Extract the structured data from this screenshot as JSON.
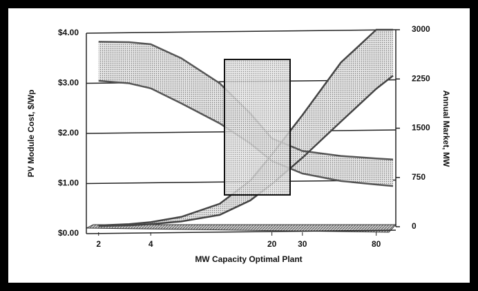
{
  "chart_data": {
    "type": "band",
    "xlabel": "MW Capacity Optimal Plant",
    "ylabel": "PV Module Cost, $/Wp",
    "y2label": "Annual Market, MW",
    "xscale": "log",
    "x": [
      2,
      3,
      4,
      6,
      10,
      15,
      20,
      30,
      50,
      80,
      100
    ],
    "xlim": [
      1.7,
      100
    ],
    "xticks": [
      2,
      4,
      20,
      30,
      80
    ],
    "ylim": [
      0,
      4
    ],
    "yticks": [
      {
        "value": 0,
        "label": "$0.00"
      },
      {
        "value": 1,
        "label": "$1.00"
      },
      {
        "value": 2,
        "label": "$2.00"
      },
      {
        "value": 3,
        "label": "$3.00"
      },
      {
        "value": 4,
        "label": "$4.00"
      }
    ],
    "y2lim": [
      0,
      3000
    ],
    "y2ticks": [
      0,
      750,
      1500,
      2250,
      3000
    ],
    "grid": true,
    "series": [
      {
        "color": "#555555",
        "values": [
          3.83,
          3.82,
          3.78,
          3.5,
          3.0,
          2.4,
          1.9,
          1.65,
          1.55,
          1.5,
          1.48
        ]
      },
      {
        "color": "#555555",
        "values": [
          3.05,
          3.0,
          2.9,
          2.6,
          2.2,
          1.8,
          1.45,
          1.2,
          1.05,
          0.98,
          0.95
        ]
      },
      {
        "color": "#444444",
        "axis": "y2",
        "values": [
          20,
          40,
          70,
          150,
          350,
          700,
          1100,
          1700,
          2500,
          3000,
          3000
        ]
      },
      {
        "color": "#444444",
        "axis": "y2",
        "values": [
          10,
          20,
          40,
          80,
          180,
          400,
          650,
          1050,
          1600,
          2100,
          2300
        ]
      }
    ]
  }
}
